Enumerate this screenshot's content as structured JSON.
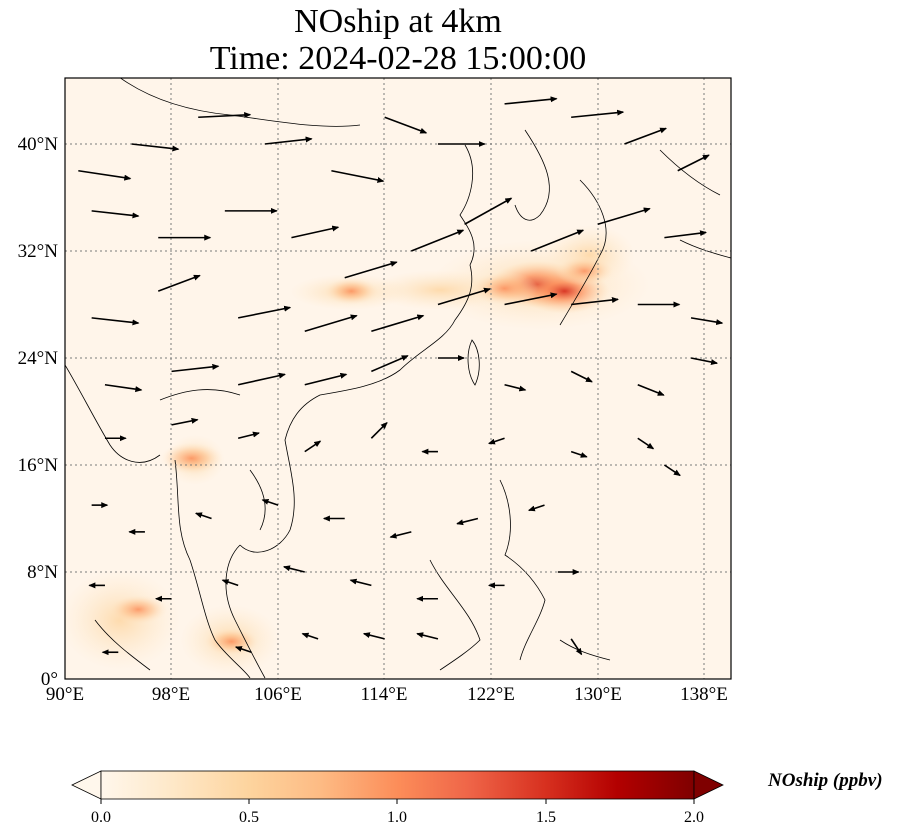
{
  "title": {
    "line1": "NOship at 4km",
    "line2": "Time: 2024-02-28 15:00:00"
  },
  "map": {
    "lon_ticks": [
      "90°E",
      "98°E",
      "106°E",
      "114°E",
      "122°E",
      "130°E",
      "138°E"
    ],
    "lat_ticks": [
      "0°",
      "8°N",
      "16°N",
      "24°N",
      "32°N",
      "40°N"
    ],
    "lon_range": [
      90,
      140
    ],
    "lat_range": [
      0,
      45
    ],
    "gridlines": "dotted",
    "land_outline_color": "#000000"
  },
  "colorbar": {
    "label": "NOship (ppbv)",
    "ticks": [
      "0.0",
      "0.5",
      "1.0",
      "1.5",
      "2.0"
    ],
    "range": [
      0,
      2
    ],
    "colormap": "OrRd",
    "extend": "both",
    "colors": [
      "#fff7ec",
      "#fee8c8",
      "#fdd49e",
      "#fdbb84",
      "#fc8d59",
      "#ef6548",
      "#d7301f",
      "#b30000",
      "#7f0000"
    ]
  },
  "chart_data": {
    "type": "heatmap",
    "variable": "NOship",
    "units": "ppbv",
    "hotspots": [
      {
        "lon": 125.5,
        "lat": 29.5,
        "value": 1.6
      },
      {
        "lon": 127.5,
        "lat": 29.0,
        "value": 1.5
      },
      {
        "lon": 123.0,
        "lat": 29.2,
        "value": 1.0
      },
      {
        "lon": 129.0,
        "lat": 30.5,
        "value": 0.8
      },
      {
        "lon": 111.5,
        "lat": 29.0,
        "value": 0.7
      },
      {
        "lon": 99.5,
        "lat": 16.5,
        "value": 0.9
      },
      {
        "lon": 95.5,
        "lat": 5.2,
        "value": 0.8
      },
      {
        "lon": 102.5,
        "lat": 2.8,
        "value": 0.7
      }
    ],
    "wind_vectors": [
      {
        "lon": 91,
        "lat": 38,
        "u": 1.0,
        "v": -0.15
      },
      {
        "lon": 95,
        "lat": 40,
        "u": 0.9,
        "v": -0.1
      },
      {
        "lon": 100,
        "lat": 42,
        "u": 1.0,
        "v": 0.05
      },
      {
        "lon": 105,
        "lat": 40,
        "u": 0.9,
        "v": 0.1
      },
      {
        "lon": 110,
        "lat": 38,
        "u": 1.0,
        "v": -0.2
      },
      {
        "lon": 114,
        "lat": 42,
        "u": 0.8,
        "v": -0.3
      },
      {
        "lon": 118,
        "lat": 40,
        "u": 0.9,
        "v": 0.0
      },
      {
        "lon": 123,
        "lat": 43,
        "u": 1.0,
        "v": 0.1
      },
      {
        "lon": 128,
        "lat": 42,
        "u": 1.0,
        "v": 0.1
      },
      {
        "lon": 132,
        "lat": 40,
        "u": 0.8,
        "v": 0.3
      },
      {
        "lon": 136,
        "lat": 38,
        "u": 0.6,
        "v": 0.3
      },
      {
        "lon": 92,
        "lat": 35,
        "u": 0.9,
        "v": -0.1
      },
      {
        "lon": 97,
        "lat": 33,
        "u": 1.0,
        "v": 0.0
      },
      {
        "lon": 102,
        "lat": 35,
        "u": 1.0,
        "v": 0.0
      },
      {
        "lon": 107,
        "lat": 33,
        "u": 0.9,
        "v": 0.2
      },
      {
        "lon": 111,
        "lat": 30,
        "u": 1.0,
        "v": 0.3
      },
      {
        "lon": 116,
        "lat": 32,
        "u": 1.0,
        "v": 0.4
      },
      {
        "lon": 120,
        "lat": 34,
        "u": 0.9,
        "v": 0.5
      },
      {
        "lon": 125,
        "lat": 32,
        "u": 1.0,
        "v": 0.4
      },
      {
        "lon": 130,
        "lat": 34,
        "u": 1.0,
        "v": 0.3
      },
      {
        "lon": 135,
        "lat": 33,
        "u": 0.8,
        "v": 0.1
      },
      {
        "lon": 92,
        "lat": 27,
        "u": 0.9,
        "v": -0.1
      },
      {
        "lon": 97,
        "lat": 29,
        "u": 0.8,
        "v": 0.3
      },
      {
        "lon": 103,
        "lat": 27,
        "u": 1.0,
        "v": 0.2
      },
      {
        "lon": 108,
        "lat": 26,
        "u": 1.0,
        "v": 0.3
      },
      {
        "lon": 113,
        "lat": 26,
        "u": 1.0,
        "v": 0.3
      },
      {
        "lon": 118,
        "lat": 28,
        "u": 1.0,
        "v": 0.3
      },
      {
        "lon": 123,
        "lat": 28,
        "u": 1.0,
        "v": 0.2
      },
      {
        "lon": 128,
        "lat": 28,
        "u": 0.9,
        "v": 0.1
      },
      {
        "lon": 133,
        "lat": 28,
        "u": 0.8,
        "v": 0.0
      },
      {
        "lon": 137,
        "lat": 27,
        "u": 0.6,
        "v": -0.1
      },
      {
        "lon": 93,
        "lat": 22,
        "u": 0.7,
        "v": -0.1
      },
      {
        "lon": 98,
        "lat": 23,
        "u": 0.9,
        "v": 0.1
      },
      {
        "lon": 103,
        "lat": 22,
        "u": 0.9,
        "v": 0.2
      },
      {
        "lon": 108,
        "lat": 22,
        "u": 0.8,
        "v": 0.2
      },
      {
        "lon": 113,
        "lat": 23,
        "u": 0.7,
        "v": 0.3
      },
      {
        "lon": 118,
        "lat": 24,
        "u": 0.5,
        "v": 0.0
      },
      {
        "lon": 123,
        "lat": 22,
        "u": 0.4,
        "v": -0.1
      },
      {
        "lon": 128,
        "lat": 23,
        "u": 0.4,
        "v": -0.2
      },
      {
        "lon": 133,
        "lat": 22,
        "u": 0.5,
        "v": -0.2
      },
      {
        "lon": 137,
        "lat": 24,
        "u": 0.5,
        "v": -0.1
      },
      {
        "lon": 93,
        "lat": 18,
        "u": 0.4,
        "v": 0.0
      },
      {
        "lon": 98,
        "lat": 19,
        "u": 0.5,
        "v": 0.1
      },
      {
        "lon": 103,
        "lat": 18,
        "u": 0.4,
        "v": 0.1
      },
      {
        "lon": 108,
        "lat": 17,
        "u": 0.3,
        "v": 0.2
      },
      {
        "lon": 113,
        "lat": 18,
        "u": 0.3,
        "v": 0.3
      },
      {
        "lon": 118,
        "lat": 17,
        "u": -0.3,
        "v": 0.0
      },
      {
        "lon": 123,
        "lat": 18,
        "u": -0.3,
        "v": -0.1
      },
      {
        "lon": 128,
        "lat": 17,
        "u": 0.3,
        "v": -0.1
      },
      {
        "lon": 133,
        "lat": 18,
        "u": 0.3,
        "v": -0.2
      },
      {
        "lon": 135,
        "lat": 16,
        "u": 0.3,
        "v": -0.2
      },
      {
        "lon": 92,
        "lat": 13,
        "u": 0.3,
        "v": 0.0
      },
      {
        "lon": 96,
        "lat": 11,
        "u": -0.3,
        "v": 0.0
      },
      {
        "lon": 101,
        "lat": 12,
        "u": -0.3,
        "v": 0.1
      },
      {
        "lon": 106,
        "lat": 13,
        "u": -0.3,
        "v": 0.1
      },
      {
        "lon": 111,
        "lat": 12,
        "u": -0.4,
        "v": 0.0
      },
      {
        "lon": 116,
        "lat": 11,
        "u": -0.4,
        "v": -0.1
      },
      {
        "lon": 121,
        "lat": 12,
        "u": -0.4,
        "v": -0.1
      },
      {
        "lon": 126,
        "lat": 13,
        "u": -0.3,
        "v": -0.1
      },
      {
        "lon": 93,
        "lat": 7,
        "u": -0.3,
        "v": 0.0
      },
      {
        "lon": 98,
        "lat": 6,
        "u": -0.3,
        "v": 0.0
      },
      {
        "lon": 103,
        "lat": 7,
        "u": -0.3,
        "v": 0.1
      },
      {
        "lon": 108,
        "lat": 8,
        "u": -0.4,
        "v": 0.1
      },
      {
        "lon": 113,
        "lat": 7,
        "u": -0.4,
        "v": 0.1
      },
      {
        "lon": 118,
        "lat": 6,
        "u": -0.4,
        "v": 0.0
      },
      {
        "lon": 123,
        "lat": 7,
        "u": -0.3,
        "v": 0.0
      },
      {
        "lon": 127,
        "lat": 8,
        "u": 0.4,
        "v": 0.0
      },
      {
        "lon": 94,
        "lat": 2,
        "u": -0.3,
        "v": 0.0
      },
      {
        "lon": 104,
        "lat": 2,
        "u": -0.3,
        "v": 0.1
      },
      {
        "lon": 109,
        "lat": 3,
        "u": -0.3,
        "v": 0.1
      },
      {
        "lon": 114,
        "lat": 3,
        "u": -0.4,
        "v": 0.1
      },
      {
        "lon": 118,
        "lat": 3,
        "u": -0.4,
        "v": 0.1
      },
      {
        "lon": 128,
        "lat": 3,
        "u": 0.2,
        "v": -0.3
      }
    ]
  }
}
